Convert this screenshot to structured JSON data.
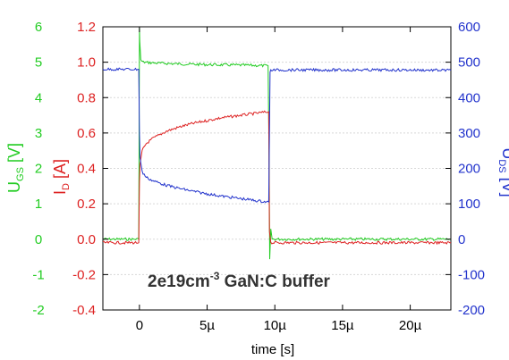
{
  "chart_data": {
    "type": "line",
    "xlabel": "time [s]",
    "annotation": {
      "main": "2e19cm",
      "sup": "-3",
      "rest": " GaN:C buffer"
    },
    "x_axis": {
      "range": [
        -2.7,
        23
      ],
      "ticks": [
        0,
        5,
        10,
        15,
        20
      ],
      "tick_labels": [
        "0",
        "5µ",
        "10µ",
        "15µ",
        "20µ"
      ],
      "unit": "µs"
    },
    "axes": {
      "ugs": {
        "label_main": "U",
        "label_sub": "GS",
        "label_rest": " [V]",
        "color": "#22cc22",
        "range": [
          -2,
          6
        ],
        "ticks": [
          -2,
          -1,
          0,
          1,
          2,
          3,
          4,
          5,
          6
        ],
        "tick_labels": [
          "-2",
          "-1",
          "0",
          "1",
          "2",
          "3",
          "4",
          "5",
          "6"
        ]
      },
      "id": {
        "label_main": "I",
        "label_sub": "D",
        "label_rest": " [A]",
        "color": "#dd2222",
        "range": [
          -0.4,
          1.2
        ],
        "ticks": [
          -0.4,
          -0.2,
          0.0,
          0.2,
          0.4,
          0.6,
          0.8,
          1.0,
          1.2
        ],
        "tick_labels": [
          "-0.4",
          "-0.2",
          "0.0",
          "0.2",
          "0.4",
          "0.6",
          "0.8",
          "1.0",
          "1.2"
        ]
      },
      "uds": {
        "label_main": "U",
        "label_sub": "DS",
        "label_rest": " [V]",
        "color": "#2233cc",
        "range": [
          -200,
          600
        ],
        "ticks": [
          -200,
          -100,
          0,
          100,
          200,
          300,
          400,
          500,
          600
        ],
        "tick_labels": [
          "-200",
          "-100",
          "0",
          "100",
          "200",
          "300",
          "400",
          "500",
          "600"
        ]
      }
    },
    "grid": true,
    "series": [
      {
        "axis": "ugs",
        "color": "#22cc22",
        "x": [
          -2.7,
          -0.05,
          0.0,
          0.02,
          0.1,
          0.3,
          1,
          3,
          5,
          7,
          9.5,
          9.58,
          9.62,
          9.7,
          9.8,
          12,
          15,
          18,
          20,
          23
        ],
        "y": [
          0,
          0,
          6.0,
          5.6,
          5.05,
          5.0,
          4.98,
          4.95,
          4.93,
          4.92,
          4.9,
          2.0,
          -0.6,
          0.3,
          0,
          0,
          0,
          0,
          0,
          0
        ]
      },
      {
        "axis": "id",
        "color": "#dd2222",
        "x": [
          -2.7,
          -0.05,
          0.0,
          0.05,
          0.2,
          0.5,
          1,
          2,
          3,
          4,
          5,
          6,
          7,
          8,
          9,
          9.55,
          9.6,
          9.7,
          12,
          15,
          18,
          20,
          23
        ],
        "y": [
          -0.02,
          -0.02,
          0.32,
          0.42,
          0.5,
          0.54,
          0.57,
          0.61,
          0.635,
          0.655,
          0.67,
          0.685,
          0.695,
          0.705,
          0.715,
          0.72,
          0.05,
          -0.02,
          -0.02,
          -0.02,
          -0.02,
          -0.02,
          -0.02
        ]
      },
      {
        "axis": "uds",
        "color": "#2233cc",
        "x": [
          -2.7,
          -0.05,
          0.0,
          0.05,
          0.2,
          0.5,
          1,
          2,
          3,
          4,
          5,
          6,
          7,
          8,
          9,
          9.55,
          9.6,
          9.65,
          9.7,
          12,
          15,
          18,
          20,
          23
        ],
        "y": [
          480,
          480,
          300,
          230,
          190,
          175,
          165,
          152,
          143,
          135,
          128,
          122,
          117,
          112,
          107,
          105,
          300,
          470,
          478,
          478,
          478,
          478,
          478,
          477
        ]
      }
    ]
  }
}
